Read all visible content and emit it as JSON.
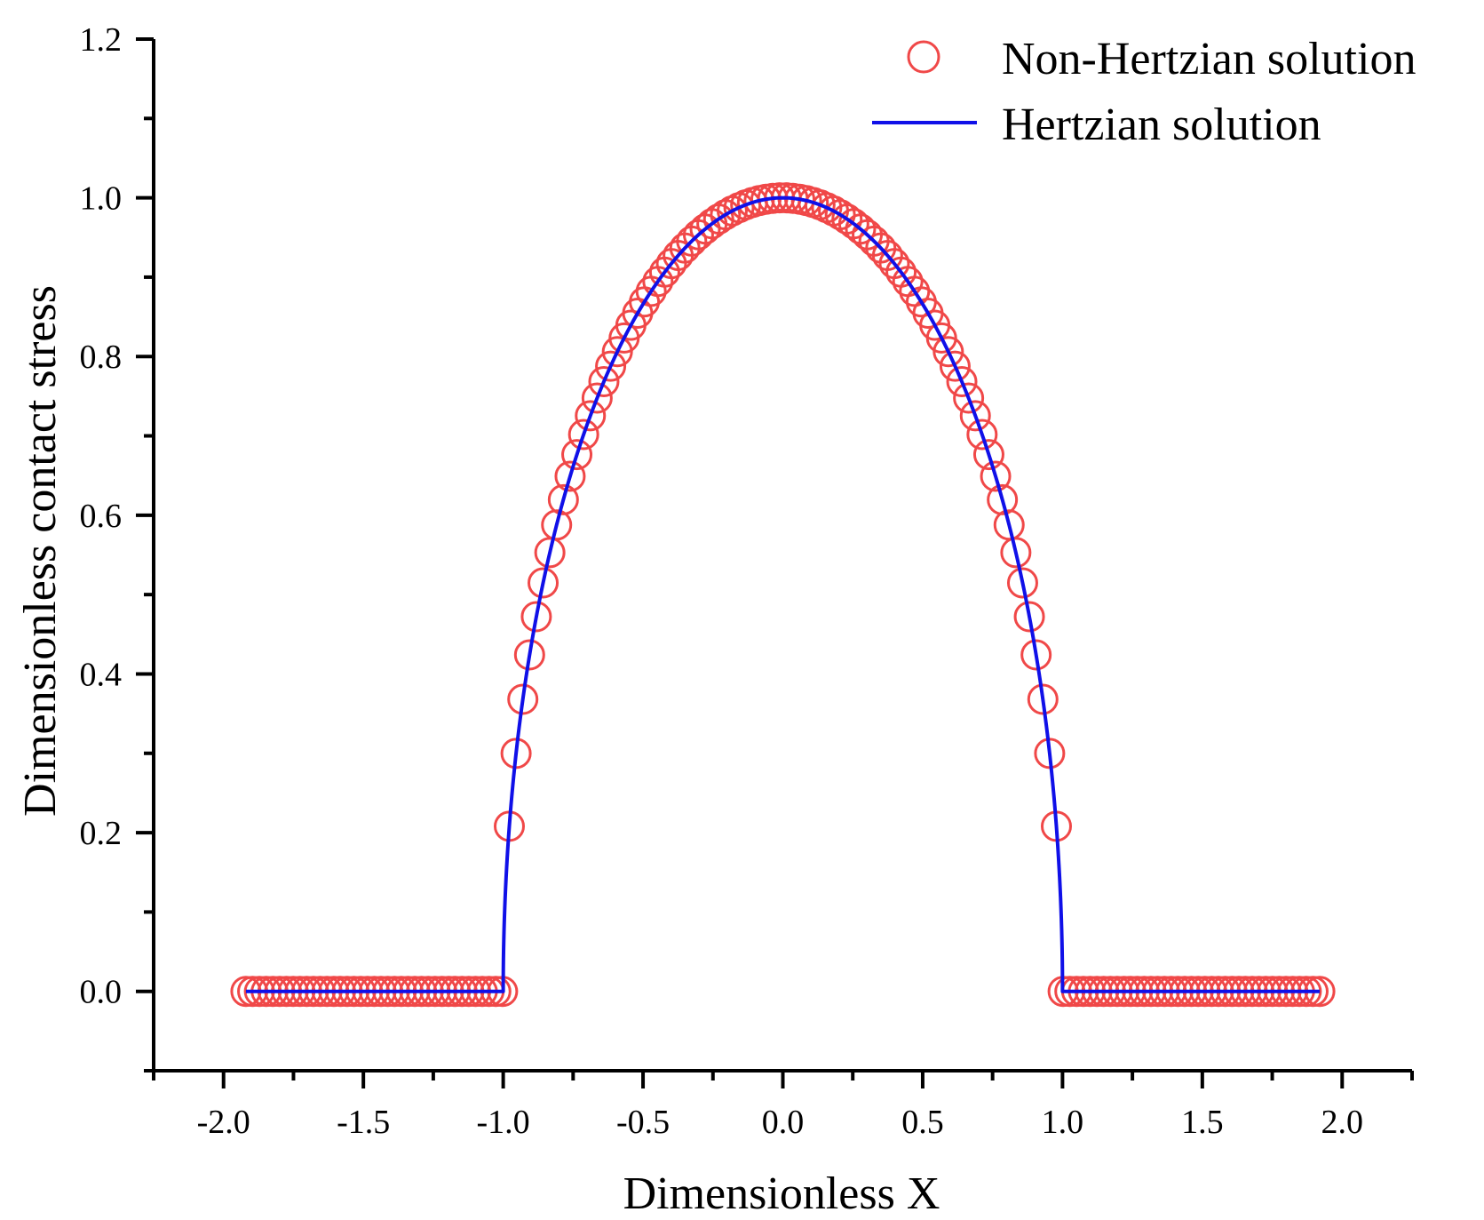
{
  "chart_data": {
    "type": "scatter",
    "title": "",
    "xlabel": "Dimensionless X",
    "ylabel": "Dimensionless contact stress",
    "xlim": [
      -2.25,
      2.25
    ],
    "ylim": [
      -0.1,
      1.2
    ],
    "xticks": [
      -2.0,
      -1.5,
      -1.0,
      -0.5,
      0.0,
      0.5,
      1.0,
      1.5,
      2.0
    ],
    "xtick_labels": [
      "-2.0",
      "-1.5",
      "-1.0",
      "-0.5",
      "0.0",
      "0.5",
      "1.0",
      "1.5",
      "2.0"
    ],
    "yticks": [
      0.0,
      0.2,
      0.4,
      0.6,
      0.8,
      1.0,
      1.2
    ],
    "ytick_labels": [
      "0.0",
      "0.2",
      "0.4",
      "0.6",
      "0.8",
      "1.0",
      "1.2"
    ],
    "legend_position": "top-right",
    "series": [
      {
        "name": "Non-Hertzian solution",
        "style": "open-circle",
        "color": "#f04848",
        "x_range": [
          -1.92,
          1.92
        ],
        "contact_half_width": 1.0,
        "profile": "y = sqrt(1 - x^2) for |x| <= 1, y = 0 otherwise",
        "point_count": 160
      },
      {
        "name": "Hertzian solution",
        "style": "line",
        "color": "#1010e8",
        "x_range": [
          -1.92,
          1.92
        ],
        "contact_half_width": 1.0,
        "profile": "y = sqrt(1 - x^2) for |x| <= 1, y = 0 otherwise"
      }
    ]
  }
}
